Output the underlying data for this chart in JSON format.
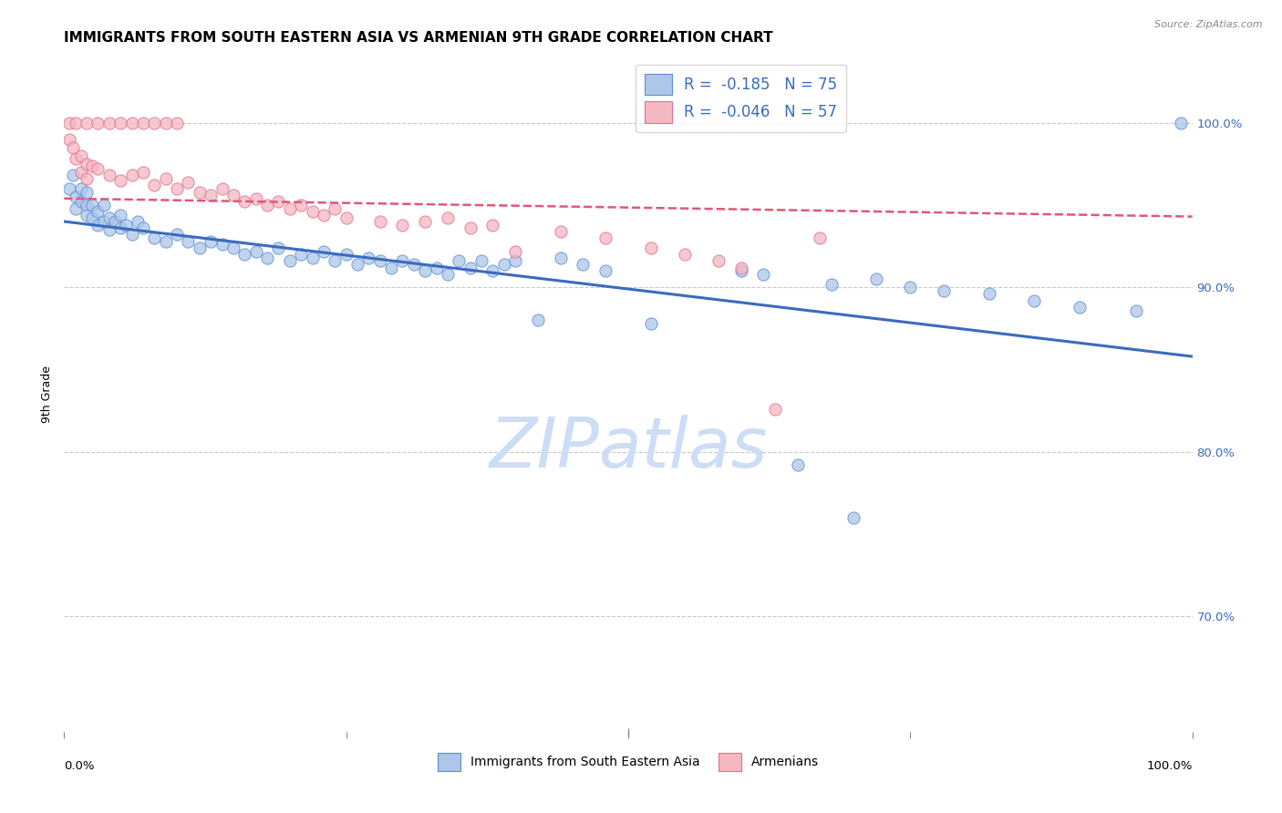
{
  "title": "IMMIGRANTS FROM SOUTH EASTERN ASIA VS ARMENIAN 9TH GRADE CORRELATION CHART",
  "source": "Source: ZipAtlas.com",
  "ylabel": "9th Grade",
  "ytick_labels": [
    "100.0%",
    "90.0%",
    "80.0%",
    "70.0%"
  ],
  "ytick_positions": [
    1.0,
    0.9,
    0.8,
    0.7
  ],
  "xlim": [
    0.0,
    1.0
  ],
  "ylim": [
    0.63,
    1.04
  ],
  "legend_r_values": [
    "-0.185",
    "-0.046"
  ],
  "legend_n_values": [
    "75",
    "57"
  ],
  "blue_fill": "#aec6e8",
  "pink_fill": "#f4b8c1",
  "blue_edge": "#5b8fd4",
  "pink_edge": "#e07090",
  "blue_line_color": "#3a6bbf",
  "pink_line_color": "#e05878",
  "watermark_text": "ZIPatlas",
  "watermark_color": "#ccddf5",
  "grid_color": "#c8c8c8",
  "background_color": "#ffffff",
  "title_fontsize": 11,
  "axis_label_fontsize": 9,
  "tick_fontsize": 9.5,
  "watermark_fontsize": 55,
  "blue_line": {
    "x0": 0.0,
    "x1": 1.0,
    "y0": 0.94,
    "y1": 0.858
  },
  "pink_line": {
    "x0": 0.0,
    "x1": 1.0,
    "y0": 0.954,
    "y1": 0.943
  },
  "blue_x": [
    0.005,
    0.008,
    0.01,
    0.01,
    0.015,
    0.015,
    0.02,
    0.02,
    0.02,
    0.025,
    0.025,
    0.03,
    0.03,
    0.035,
    0.035,
    0.04,
    0.04,
    0.045,
    0.05,
    0.05,
    0.055,
    0.06,
    0.065,
    0.07,
    0.08,
    0.09,
    0.1,
    0.11,
    0.12,
    0.13,
    0.14,
    0.15,
    0.16,
    0.17,
    0.18,
    0.19,
    0.2,
    0.21,
    0.22,
    0.23,
    0.24,
    0.25,
    0.26,
    0.27,
    0.28,
    0.29,
    0.3,
    0.31,
    0.32,
    0.33,
    0.34,
    0.35,
    0.36,
    0.37,
    0.38,
    0.39,
    0.4,
    0.42,
    0.44,
    0.46,
    0.48,
    0.52,
    0.6,
    0.62,
    0.65,
    0.68,
    0.7,
    0.72,
    0.75,
    0.78,
    0.82,
    0.86,
    0.9,
    0.95,
    0.99
  ],
  "blue_y": [
    0.96,
    0.968,
    0.955,
    0.948,
    0.952,
    0.96,
    0.95,
    0.944,
    0.958,
    0.95,
    0.942,
    0.946,
    0.938,
    0.95,
    0.94,
    0.942,
    0.935,
    0.94,
    0.936,
    0.944,
    0.938,
    0.932,
    0.94,
    0.936,
    0.93,
    0.928,
    0.932,
    0.928,
    0.924,
    0.928,
    0.926,
    0.924,
    0.92,
    0.922,
    0.918,
    0.924,
    0.916,
    0.92,
    0.918,
    0.922,
    0.916,
    0.92,
    0.914,
    0.918,
    0.916,
    0.912,
    0.916,
    0.914,
    0.91,
    0.912,
    0.908,
    0.916,
    0.912,
    0.916,
    0.91,
    0.914,
    0.916,
    0.88,
    0.918,
    0.914,
    0.91,
    0.878,
    0.91,
    0.908,
    0.792,
    0.902,
    0.76,
    0.905,
    0.9,
    0.898,
    0.896,
    0.892,
    0.888,
    0.886,
    1.0
  ],
  "pink_x": [
    0.005,
    0.008,
    0.01,
    0.015,
    0.015,
    0.02,
    0.02,
    0.025,
    0.03,
    0.04,
    0.05,
    0.06,
    0.07,
    0.08,
    0.09,
    0.1,
    0.11,
    0.12,
    0.13,
    0.14,
    0.15,
    0.16,
    0.17,
    0.18,
    0.19,
    0.2,
    0.21,
    0.22,
    0.23,
    0.24,
    0.25,
    0.28,
    0.3,
    0.32,
    0.34,
    0.36,
    0.38,
    0.4,
    0.44,
    0.48,
    0.52,
    0.55,
    0.58,
    0.6,
    0.63,
    0.67,
    0.005,
    0.01,
    0.02,
    0.03,
    0.04,
    0.05,
    0.06,
    0.07,
    0.08,
    0.09,
    0.1
  ],
  "pink_y": [
    0.99,
    0.985,
    0.978,
    0.98,
    0.97,
    0.975,
    0.966,
    0.974,
    0.972,
    0.968,
    0.965,
    0.968,
    0.97,
    0.962,
    0.966,
    0.96,
    0.964,
    0.958,
    0.956,
    0.96,
    0.956,
    0.952,
    0.954,
    0.95,
    0.952,
    0.948,
    0.95,
    0.946,
    0.944,
    0.948,
    0.942,
    0.94,
    0.938,
    0.94,
    0.942,
    0.936,
    0.938,
    0.922,
    0.934,
    0.93,
    0.924,
    0.92,
    0.916,
    0.912,
    0.826,
    0.93,
    1.0,
    1.0,
    1.0,
    1.0,
    1.0,
    1.0,
    1.0,
    1.0,
    1.0,
    1.0,
    1.0
  ]
}
